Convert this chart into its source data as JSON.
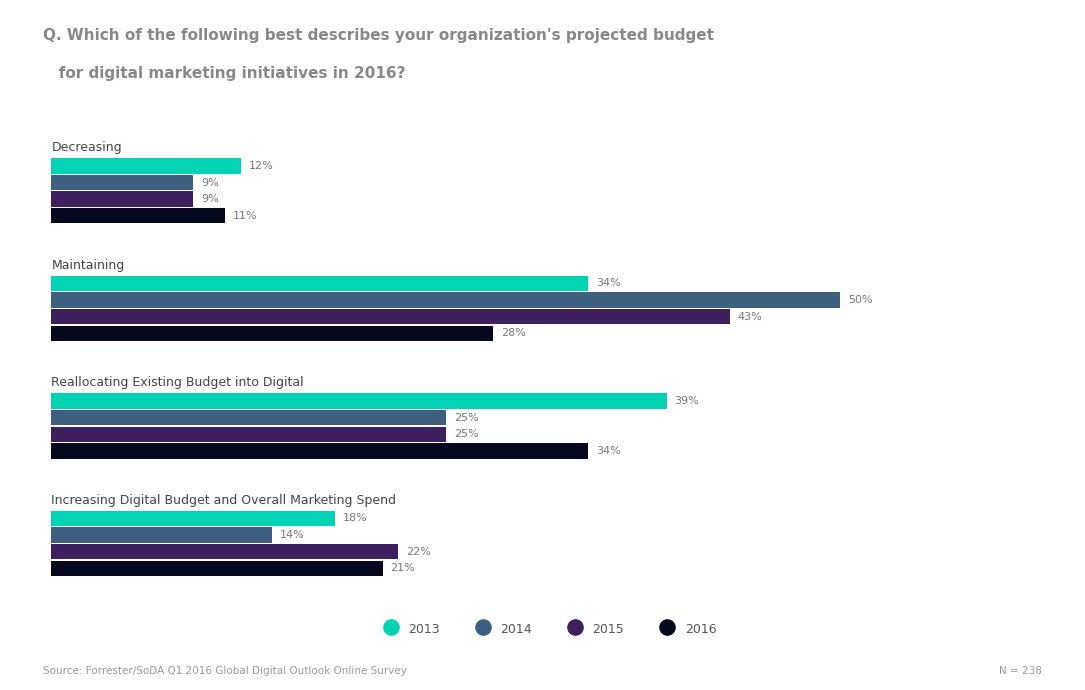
{
  "title_line1": "Q. Which of the following best describes your organization's projected budget",
  "title_line2": "   for digital marketing initiatives in 2016?",
  "categories": [
    "Decreasing",
    "Maintaining",
    "Reallocating Existing Budget into Digital",
    "Increasing Digital Budget and Overall Marketing Spend"
  ],
  "years": [
    "2013",
    "2014",
    "2015",
    "2016"
  ],
  "colors": [
    "#00d4b4",
    "#3d6080",
    "#3d1f5e",
    "#06091e"
  ],
  "data": {
    "Decreasing": [
      12,
      9,
      9,
      11
    ],
    "Maintaining": [
      34,
      50,
      43,
      28
    ],
    "Reallocating Existing Budget into Digital": [
      39,
      25,
      25,
      34
    ],
    "Increasing Digital Budget and Overall Marketing Spend": [
      18,
      14,
      22,
      21
    ]
  },
  "source_text": "Source: Forrester/SoDA Q1 2016 Global Digital Outlook Online Survey",
  "n_text": "N = 238",
  "legend_labels": [
    "2013",
    "2014",
    "2015",
    "2016"
  ],
  "background_color": "#ffffff",
  "category_label_fontsize": 9,
  "value_label_fontsize": 8,
  "title_fontsize": 11
}
